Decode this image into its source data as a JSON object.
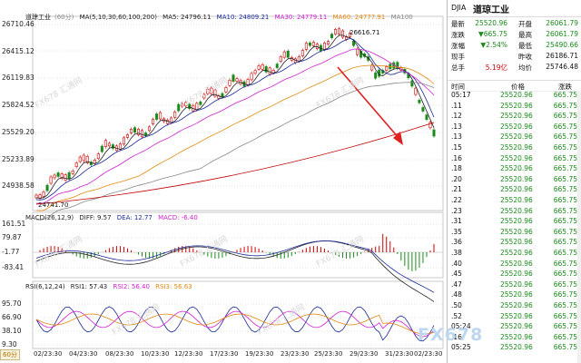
{
  "chart": {
    "price_title": "道琼工业",
    "period_hint": "(60分)",
    "ma_legend": [
      {
        "text": "MA(5,10,30,60,100,200)",
        "color": "#222222"
      },
      {
        "text": "MA5: 24796.11",
        "color": "#222222"
      },
      {
        "text": "MA10: 24809.21",
        "color": "#1a2a9a"
      },
      {
        "text": "MA30: 24779.11",
        "color": "#d020d0"
      },
      {
        "text": "MA60: 24777.91",
        "color": "#e08a10"
      },
      {
        "text": "MA100",
        "color": "#888888"
      }
    ],
    "price_ticks": [
      "26710.46",
      "26415.12",
      "26119.83",
      "25824.52",
      "25529.20",
      "25233.89",
      "24938.58"
    ],
    "peak_label": "26616.71",
    "trough_label": "24741.70",
    "macd_legend": [
      {
        "text": "MACD(26,12,9)",
        "color": "#222222"
      },
      {
        "text": "DIFF: 9.57",
        "color": "#222222"
      },
      {
        "text": "DEA: 12.77",
        "color": "#1a2a9a"
      },
      {
        "text": "MACD: -6.40",
        "color": "#d020d0"
      }
    ],
    "macd_ticks": [
      "161.51",
      "79.87",
      "-1.77",
      "-83.41"
    ],
    "rsi_legend": [
      {
        "text": "RSI(6,12,24)",
        "color": "#222222"
      },
      {
        "text": "RSI1: 57.43",
        "color": "#222222"
      },
      {
        "text": "RSI2: 56.40",
        "color": "#d020d0"
      },
      {
        "text": "RSI3: 56.63",
        "color": "#e08a10"
      }
    ],
    "rsi_ticks": [
      "95.70",
      "66.90",
      "38.10",
      "9.30"
    ],
    "x_labels": [
      "02/23:30",
      "04/23:30",
      "08/23:30",
      "10/23:30",
      "12/23:30",
      "17/23:30",
      "19/23:30",
      "23/23:30",
      "25/23:30",
      "29/23:30",
      "31/23:30",
      "02/23:30"
    ],
    "period_tag": "60分",
    "watermark": "FX678",
    "watermark_faint": "FX678 汇通网",
    "colors": {
      "up": "#d00000",
      "down": "#1a8a1a",
      "ma5": "#222222",
      "ma10": "#1a2a9a",
      "ma30": "#d020d0",
      "ma60": "#e08a10",
      "ma100": "#888888",
      "ma200": "#c00000",
      "arrow": "#e02020"
    }
  },
  "quote": {
    "code": "DJIA",
    "name": "道琼工业",
    "rows": [
      {
        "k1": "最新",
        "v1": "25520.96",
        "c1": "green",
        "k2": "开盘",
        "v2": "26061.79",
        "c2": "green"
      },
      {
        "k1": "涨跌",
        "v1": "▼665.75",
        "c1": "green",
        "k2": "最高",
        "v2": "26061.79",
        "c2": "green"
      },
      {
        "k1": "涨幅",
        "v1": "▼2.54%",
        "c1": "green",
        "k2": "最低",
        "v2": "25490.66",
        "c2": "green"
      },
      {
        "k1": "现手",
        "v1": "",
        "c1": "",
        "k2": "昨收",
        "v2": "26186.71",
        "c2": ""
      },
      {
        "k1": "总手",
        "v1": "5.19亿",
        "c1": "red",
        "k2": "均价",
        "v2": "25746.48",
        "c2": ""
      }
    ],
    "tick_headers": {
      "time": "时间",
      "price": "价格",
      "change": "涨跌"
    },
    "ticks": [
      {
        "time": "05:17",
        "price": "25520.96",
        "change": "665.75"
      },
      {
        "time": ".11",
        "price": "25520.96",
        "change": "665.75"
      },
      {
        "time": ".12",
        "price": "25520.96",
        "change": "665.75"
      },
      {
        "time": ".13",
        "price": "25520.96",
        "change": "665.75"
      },
      {
        "time": ".13",
        "price": "25520.96",
        "change": "665.75"
      },
      {
        "time": ".15",
        "price": "25520.96",
        "change": "665.75"
      },
      {
        "time": ".16",
        "price": "25520.96",
        "change": "665.75"
      },
      {
        "time": ".18",
        "price": "25520.96",
        "change": "665.75"
      },
      {
        "time": ".20",
        "price": "25520.96",
        "change": "665.75"
      },
      {
        "time": ".21",
        "price": "25520.96",
        "change": "665.75"
      },
      {
        "time": ".22",
        "price": "25520.96",
        "change": "665.75"
      },
      {
        "time": ".23",
        "price": "25520.96",
        "change": "665.75"
      },
      {
        "time": ".31",
        "price": "25520.96",
        "change": "665.75"
      },
      {
        "time": ".35",
        "price": "25520.96",
        "change": "665.75"
      },
      {
        "time": ".36",
        "price": "25520.96",
        "change": "665.75"
      },
      {
        "time": ".38",
        "price": "25520.96",
        "change": "665.75"
      },
      {
        "time": ".40",
        "price": "25520.96",
        "change": "665.75"
      },
      {
        "time": ".45",
        "price": "25520.96",
        "change": "665.75"
      },
      {
        "time": ".47",
        "price": "25520.96",
        "change": "665.75"
      },
      {
        "time": ".48",
        "price": "25520.96",
        "change": "665.75"
      },
      {
        "time": ".50",
        "price": "25520.96",
        "change": "665.75"
      },
      {
        "time": ".52",
        "price": "25520.96",
        "change": "665.75"
      },
      {
        "time": "05:24",
        "price": "25520.96",
        "change": "665.75"
      },
      {
        "time": ".16",
        "price": "25520.96",
        "change": "665.75"
      },
      {
        "time": "05:25",
        "price": "25520.96",
        "change": "665.75"
      }
    ]
  }
}
